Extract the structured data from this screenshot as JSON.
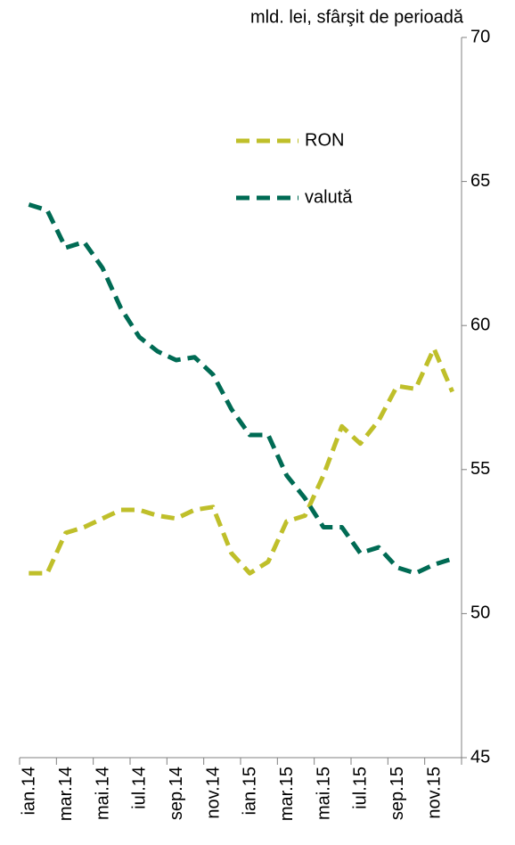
{
  "chart_data": {
    "type": "line",
    "y_axis_label": "mld. lei, sfârşit de perioadă",
    "categories": [
      "ian.14",
      null,
      "mar.14",
      null,
      "mai.14",
      null,
      "iul.14",
      null,
      "sep.14",
      null,
      "nov.14",
      null,
      "ian.15",
      null,
      "mar.15",
      null,
      "mai.15",
      null,
      "iul.15",
      null,
      "sep.15",
      null,
      "nov.15",
      null
    ],
    "series": [
      {
        "name": "RON",
        "color": "#bfbf2a",
        "values": [
          51.4,
          51.4,
          52.8,
          53.0,
          53.3,
          53.6,
          53.6,
          53.4,
          53.3,
          53.6,
          53.7,
          52.1,
          51.4,
          51.8,
          53.2,
          53.4,
          54.8,
          56.5,
          55.9,
          56.7,
          57.9,
          57.8,
          59.2,
          57.7
        ]
      },
      {
        "name": "valută",
        "color": "#006b54",
        "values": [
          64.2,
          64.0,
          62.7,
          62.9,
          62.0,
          60.6,
          59.6,
          59.1,
          58.8,
          58.9,
          58.3,
          57.1,
          56.2,
          56.2,
          54.8,
          54.0,
          53.0,
          53.0,
          52.1,
          52.3,
          51.6,
          51.4,
          51.7,
          51.9
        ]
      }
    ],
    "ylim": [
      45,
      70
    ],
    "yticks": [
      45,
      50,
      55,
      60,
      65,
      70
    ],
    "y_axis_side": "right"
  }
}
